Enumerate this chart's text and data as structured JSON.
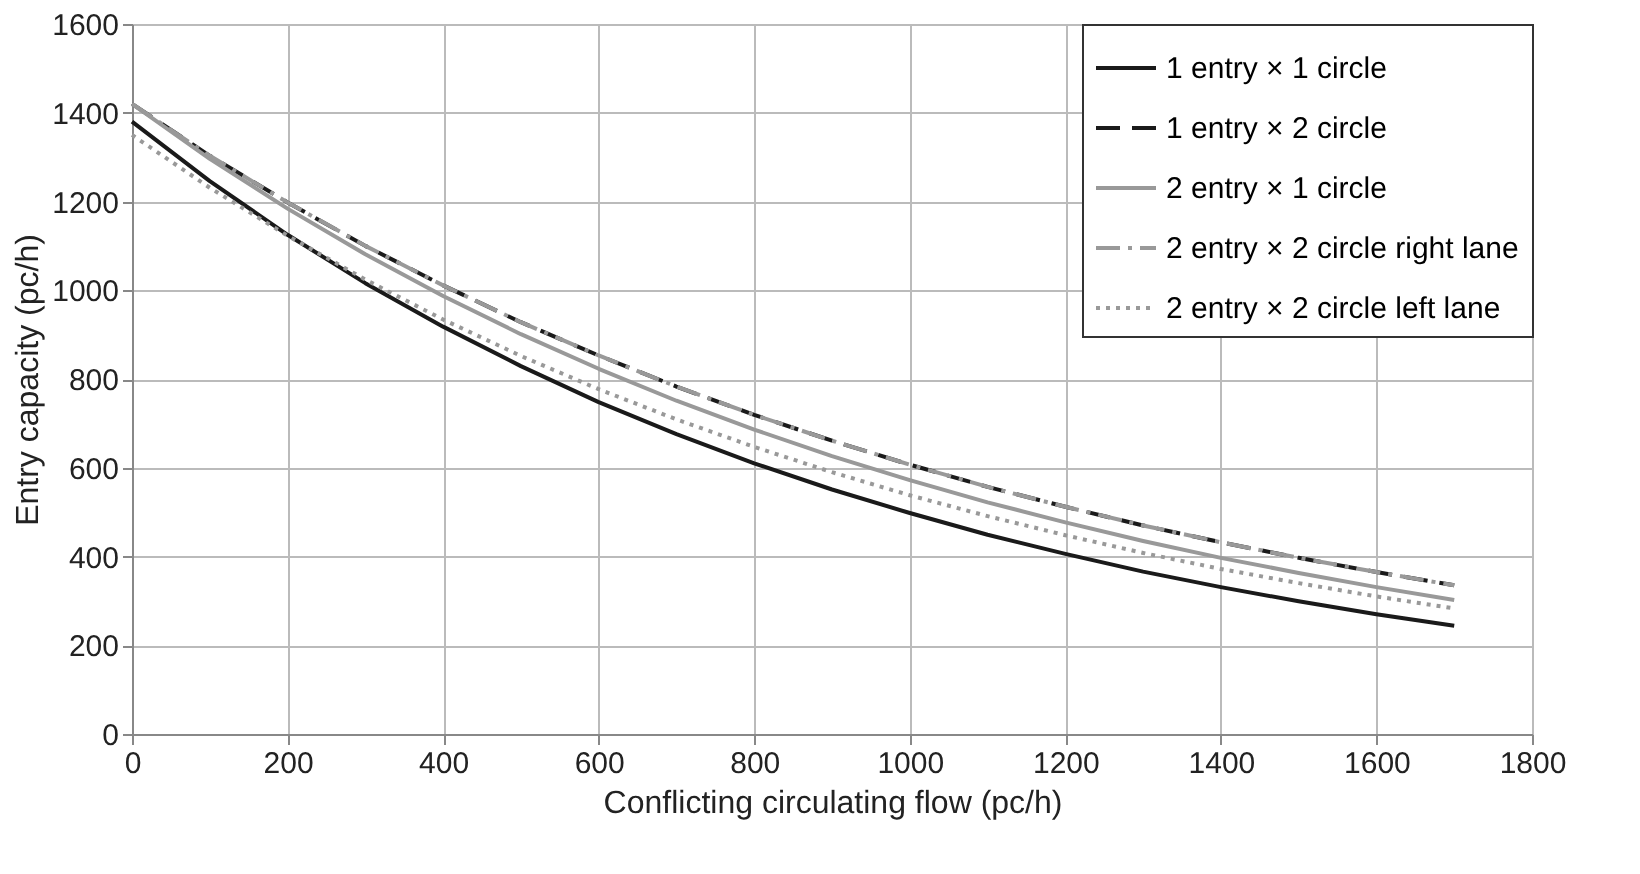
{
  "chart_data": {
    "type": "line",
    "xlabel": "Conflicting circulating flow (pc/h)",
    "ylabel": "Entry capacity (pc/h)",
    "x": [
      0,
      100,
      200,
      300,
      400,
      500,
      600,
      700,
      800,
      900,
      1000,
      1100,
      1200,
      1300,
      1400,
      1500,
      1600,
      1700
    ],
    "xlim": [
      0,
      1800
    ],
    "xticks": [
      0,
      200,
      400,
      600,
      800,
      1000,
      1200,
      1400,
      1600,
      1800
    ],
    "ylim": [
      0,
      1600
    ],
    "yticks": [
      0,
      200,
      400,
      600,
      800,
      1000,
      1200,
      1400,
      1600
    ],
    "grid": true,
    "legend": "top right",
    "marker": "none",
    "series": [
      {
        "name": "1 entry × 1 circle",
        "color": "#1a1a1a",
        "line_style": "solid",
        "values": [
          1380,
          1246,
          1125,
          1016,
          918,
          829,
          748,
          676,
          610,
          551,
          498,
          449,
          406,
          366,
          331,
          299,
          270,
          244
        ]
      },
      {
        "name": "1 entry × 2 circle",
        "color": "#1a1a1a",
        "line_style": "dashed",
        "values": [
          1420,
          1303,
          1198,
          1100,
          1011,
          928,
          853,
          783,
          719,
          661,
          607,
          557,
          512,
          470,
          432,
          397,
          365,
          335
        ]
      },
      {
        "name": "2 entry × 1 circle",
        "color": "#999999",
        "line_style": "solid",
        "values": [
          1420,
          1296,
          1184,
          1081,
          987,
          901,
          823,
          751,
          686,
          626,
          572,
          522,
          477,
          435,
          397,
          363,
          331,
          302
        ]
      },
      {
        "name": "2 entry × 2 circle right lane",
        "color": "#999999",
        "line_style": "dashdot",
        "values": [
          1420,
          1303,
          1198,
          1100,
          1011,
          928,
          853,
          783,
          719,
          661,
          607,
          557,
          512,
          470,
          432,
          397,
          365,
          335
        ]
      },
      {
        "name": "2 entry × 2 circle left lane",
        "color": "#999999",
        "line_style": "dotted",
        "values": [
          1350,
          1231,
          1123,
          1024,
          934,
          852,
          777,
          709,
          647,
          590,
          538,
          491,
          448,
          408,
          372,
          340,
          310,
          283
        ]
      }
    ]
  }
}
